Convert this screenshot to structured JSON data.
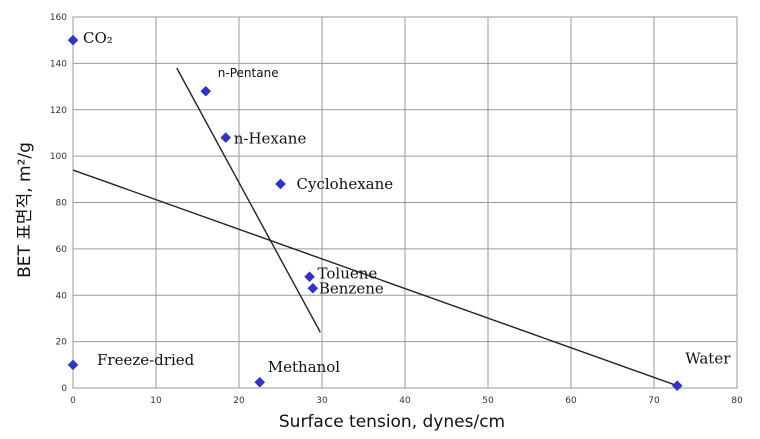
{
  "chart_data": {
    "type": "scatter",
    "xlabel": "Surface tension, dynes/cm",
    "ylabel": "BET 표면적, m²/g",
    "xlim": [
      0,
      80
    ],
    "ylim": [
      0,
      160
    ],
    "x_ticks": [
      "0",
      "10",
      "20",
      "30",
      "40",
      "50",
      "60",
      "70",
      "80"
    ],
    "y_ticks": [
      "0",
      "20",
      "40",
      "60",
      "80",
      "100",
      "120",
      "140",
      "160"
    ],
    "grid": true,
    "marker_color": "#3333cc",
    "points": [
      {
        "label": "CO₂",
        "x": 0,
        "y": 150
      },
      {
        "label": "n-Pentane",
        "x": 16,
        "y": 128
      },
      {
        "label": "n-Hexane",
        "x": 18.4,
        "y": 108
      },
      {
        "label": "Cyclohexane",
        "x": 25,
        "y": 88
      },
      {
        "label": "Toluene",
        "x": 28.5,
        "y": 48
      },
      {
        "label": "Benzene",
        "x": 28.9,
        "y": 43
      },
      {
        "label": "Freeze-dried",
        "x": 0,
        "y": 10
      },
      {
        "label": "Methanol",
        "x": 22.5,
        "y": 2.5
      },
      {
        "label": "Water",
        "x": 72.8,
        "y": 1
      }
    ],
    "trend_lines": [
      {
        "x": [
          12.5,
          29.8
        ],
        "y": [
          138,
          24
        ]
      },
      {
        "x": [
          0,
          72.8
        ],
        "y": [
          94,
          1
        ]
      }
    ]
  }
}
